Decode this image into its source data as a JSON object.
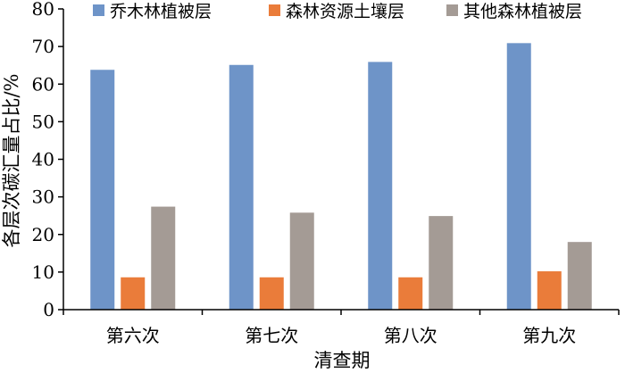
{
  "chart_data": {
    "type": "bar",
    "categories": [
      "第六次",
      "第七次",
      "第八次",
      "第九次"
    ],
    "series": [
      {
        "name": "乔木林植被层",
        "values": [
          63.8,
          65.1,
          65.9,
          70.9
        ],
        "color": "#6e94c8"
      },
      {
        "name": "森林资源土壤层",
        "values": [
          8.6,
          8.6,
          8.6,
          10.2
        ],
        "color": "#ea7c3a"
      },
      {
        "name": "其他森林植被层",
        "values": [
          27.4,
          25.8,
          24.9,
          18.0
        ],
        "color": "#a49b95"
      }
    ],
    "title": "",
    "xlabel": "清查期",
    "ylabel": "各层次碳汇量占比/%",
    "ylim": [
      0,
      80
    ],
    "yticks": [
      0,
      10,
      20,
      30,
      40,
      50,
      60,
      70,
      80
    ],
    "grid": false,
    "legend_position": "top"
  }
}
